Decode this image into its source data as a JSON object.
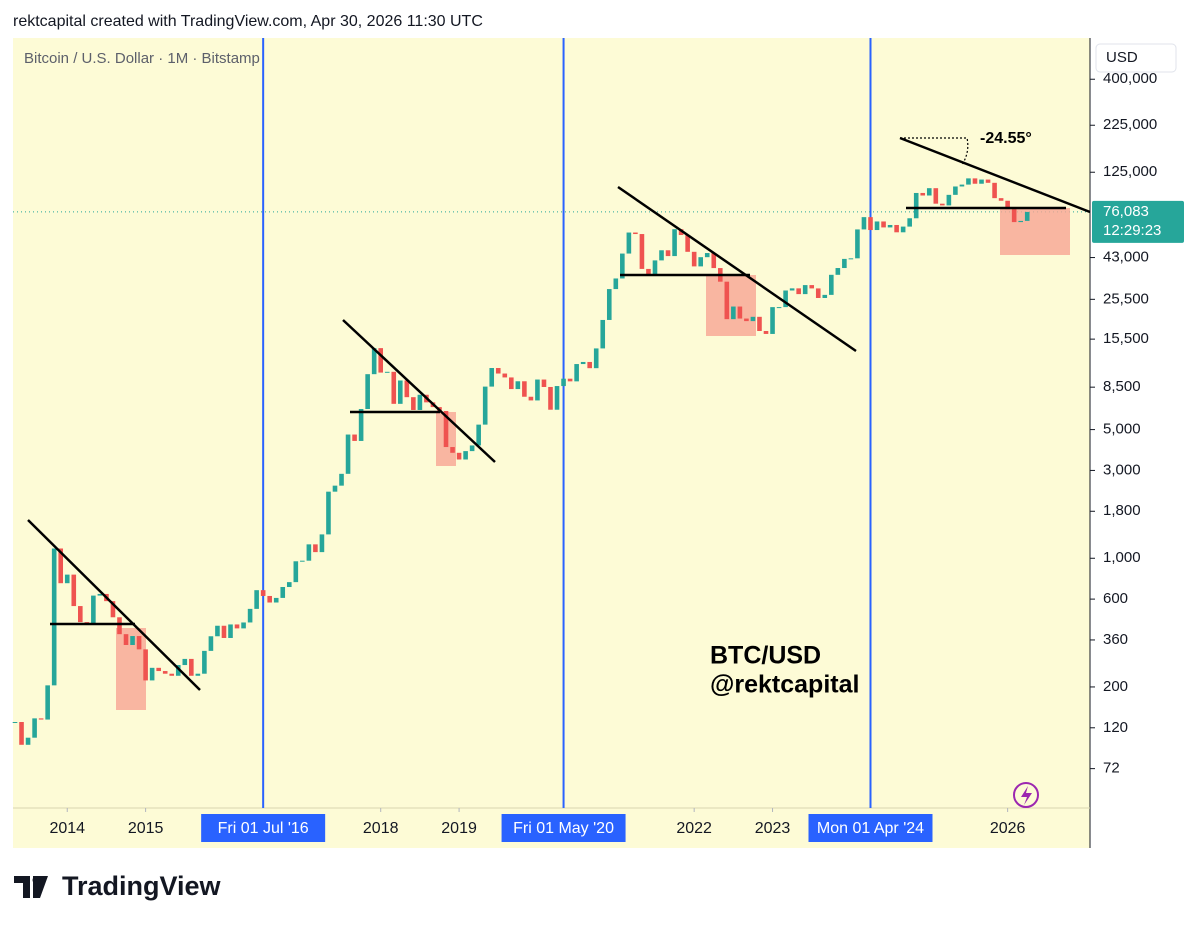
{
  "header": "rektcapital created with TradingView.com, Apr 30, 2026 11:30 UTC",
  "logo": "TradingView",
  "chart_data": {
    "type": "candlestick",
    "title": "Bitcoin / U.S. Dollar · 1M · Bitstamp",
    "currency": "USD",
    "log_scale": true,
    "up_color": "#26a69a",
    "down_color": "#ef5350",
    "x": [
      "2013-05",
      "2013-06",
      "2013-07",
      "2013-08",
      "2013-09",
      "2013-10",
      "2013-11",
      "2013-12",
      "2014-01",
      "2014-02",
      "2014-03",
      "2014-04",
      "2014-05",
      "2014-06",
      "2014-07",
      "2014-08",
      "2014-09",
      "2014-10",
      "2014-11",
      "2014-12",
      "2015-01",
      "2015-02",
      "2015-03",
      "2015-04",
      "2015-05",
      "2015-06",
      "2015-07",
      "2015-08",
      "2015-09",
      "2015-10",
      "2015-11",
      "2015-12",
      "2016-01",
      "2016-02",
      "2016-03",
      "2016-04",
      "2016-05",
      "2016-06",
      "2016-07",
      "2016-08",
      "2016-09",
      "2016-10",
      "2016-11",
      "2016-12",
      "2017-01",
      "2017-02",
      "2017-03",
      "2017-04",
      "2017-05",
      "2017-06",
      "2017-07",
      "2017-08",
      "2017-09",
      "2017-10",
      "2017-11",
      "2017-12",
      "2018-01",
      "2018-02",
      "2018-03",
      "2018-04",
      "2018-05",
      "2018-06",
      "2018-07",
      "2018-08",
      "2018-09",
      "2018-10",
      "2018-11",
      "2018-12",
      "2019-01",
      "2019-02",
      "2019-03",
      "2019-04",
      "2019-05",
      "2019-06",
      "2019-07",
      "2019-08",
      "2019-09",
      "2019-10",
      "2019-11",
      "2019-12",
      "2020-01",
      "2020-02",
      "2020-03",
      "2020-04",
      "2020-05",
      "2020-06",
      "2020-07",
      "2020-08",
      "2020-09",
      "2020-10",
      "2020-11",
      "2020-12",
      "2021-01",
      "2021-02",
      "2021-03",
      "2021-04",
      "2021-05",
      "2021-06",
      "2021-07",
      "2021-08",
      "2021-09",
      "2021-10",
      "2021-11",
      "2021-12",
      "2022-01",
      "2022-02",
      "2022-03",
      "2022-04",
      "2022-05",
      "2022-06",
      "2022-07",
      "2022-08",
      "2022-09",
      "2022-10",
      "2022-11",
      "2022-12",
      "2023-01",
      "2023-02",
      "2023-03",
      "2023-04",
      "2023-05",
      "2023-06",
      "2023-07",
      "2023-08",
      "2023-09",
      "2023-10",
      "2023-11",
      "2023-12",
      "2024-01",
      "2024-02",
      "2024-03",
      "2024-04",
      "2024-05",
      "2024-06",
      "2024-07",
      "2024-08",
      "2024-09",
      "2024-10",
      "2024-11",
      "2024-12",
      "2025-01",
      "2025-02",
      "2025-03",
      "2025-04",
      "2025-05",
      "2025-06",
      "2025-07",
      "2025-08",
      "2025-09",
      "2025-10",
      "2025-11",
      "2025-12",
      "2026-01",
      "2026-02",
      "2026-03",
      "2026-04"
    ],
    "values": [
      129,
      97,
      106,
      135,
      133,
      204,
      1130,
      732,
      815,
      550,
      450,
      445,
      627,
      640,
      585,
      478,
      387,
      338,
      378,
      320,
      217,
      254,
      244,
      236,
      230,
      263,
      284,
      230,
      236,
      314,
      377,
      430,
      369,
      437,
      416,
      448,
      531,
      671,
      624,
      575,
      609,
      698,
      742,
      963,
      970,
      1190,
      1080,
      1348,
      2300,
      2480,
      2875,
      4700,
      4338,
      6468,
      10000,
      13850,
      10200,
      10300,
      6900,
      9240,
      7500,
      6390,
      7730,
      7030,
      6625,
      6310,
      4020,
      3740,
      3440,
      3820,
      4100,
      5320,
      8560,
      10800,
      10080,
      9600,
      8300,
      9150,
      7540,
      7200,
      9350,
      8520,
      6410,
      8620,
      9450,
      9140,
      11350,
      11650,
      10780,
      13800,
      19700,
      28990,
      33100,
      45200,
      58800,
      57700,
      37300,
      35000,
      41500,
      47100,
      43800,
      61300,
      57000,
      46200,
      38500,
      43200,
      45500,
      37700,
      31800,
      19900,
      23300,
      20050,
      19420,
      20490,
      17160,
      16540,
      23130,
      23140,
      28480,
      29250,
      27220,
      30470,
      29230,
      25930,
      26960,
      34650,
      37720,
      42280,
      42580,
      61130,
      71290,
      60670,
      67530,
      62680,
      64620,
      58970,
      63330,
      70290,
      96450,
      93430,
      102400,
      84350,
      82550,
      94200,
      104600,
      107100,
      115750,
      108250,
      114050,
      109500,
      90400,
      87500,
      78700,
      67000,
      68000,
      76083
    ],
    "last_price": {
      "value": 76083,
      "label": "76,083"
    },
    "countdown": "12:29:23",
    "xlim": [
      "2013-05",
      "2027-01"
    ],
    "xticks": [
      "2014",
      "2015",
      "2018",
      "2019",
      "2022",
      "2023",
      "2026"
    ],
    "ylim": [
      44,
      670000
    ],
    "yticks": [
      72,
      120,
      200,
      360,
      600,
      {
        "value": 1000,
        "label": "1,000"
      },
      {
        "value": 1800,
        "label": "1,800"
      },
      {
        "value": 3000,
        "label": "3,000"
      },
      {
        "value": 5000,
        "label": "5,000"
      },
      {
        "value": 8500,
        "label": "8,500"
      },
      {
        "value": 15500,
        "label": "15,500"
      },
      {
        "value": 25500,
        "label": "25,500"
      },
      {
        "value": 43000,
        "label": "43,000"
      },
      {
        "value": 125000,
        "label": "125,000"
      },
      {
        "value": 225000,
        "label": "225,000"
      },
      {
        "value": 400000,
        "label": "400,000"
      }
    ],
    "markers": [
      {
        "x": "2016-07",
        "label": "Fri 01 Jul '16"
      },
      {
        "x": "2020-05",
        "label": "Fri 01 May '20"
      },
      {
        "x": "2024-04",
        "label": "Mon 01 Apr '24"
      }
    ],
    "annotations": {
      "angle": "-24.55°",
      "pair": "BTC/USD",
      "author": "@rektcapital"
    }
  }
}
